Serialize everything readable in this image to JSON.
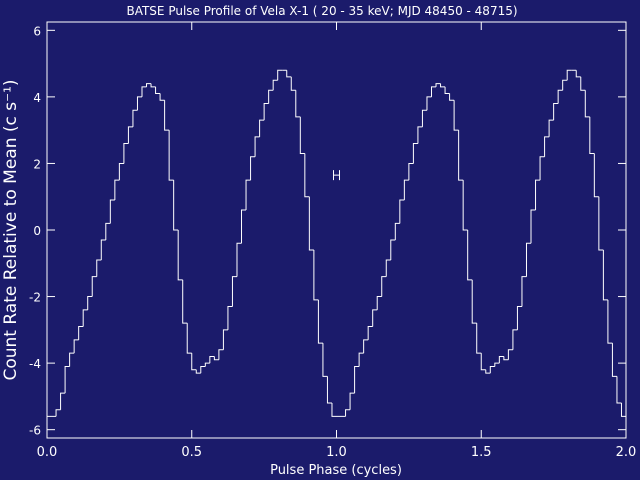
{
  "chart_data": {
    "type": "step-histogram",
    "title": "BATSE Pulse Profile of Vela X-1 ( 20 - 35 keV; MJD 48450 - 48715)",
    "x_label": "Pulse Phase (cycles)",
    "y_label": "Count Rate Relative to Mean (c s⁻¹)",
    "color": "#ffffff",
    "background": "#1b1b6b",
    "bins": [
      0,
      0.015625,
      0.03125,
      0.046875,
      0.0625,
      0.078125,
      0.09375,
      0.109375,
      0.125,
      0.140625,
      0.15625,
      0.171875,
      0.1875,
      0.203125,
      0.21875,
      0.234375,
      0.25,
      0.265625,
      0.28125,
      0.296875,
      0.3125,
      0.328125,
      0.34375,
      0.359375,
      0.375,
      0.390625,
      0.40625,
      0.421875,
      0.4375,
      0.453125,
      0.46875,
      0.484375,
      0.5,
      0.515625,
      0.53125,
      0.546875,
      0.5625,
      0.578125,
      0.59375,
      0.609375,
      0.625,
      0.640625,
      0.65625,
      0.671875,
      0.6875,
      0.703125,
      0.71875,
      0.734375,
      0.75,
      0.765625,
      0.78125,
      0.796875,
      0.8125,
      0.828125,
      0.84375,
      0.859375,
      0.875,
      0.890625,
      0.90625,
      0.921875,
      0.9375,
      0.953125,
      0.96875,
      0.984375,
      1,
      1.015625,
      1.03125,
      1.046875,
      1.0625,
      1.078125,
      1.09375,
      1.109375,
      1.125,
      1.140625,
      1.15625,
      1.171875,
      1.1875,
      1.203125,
      1.21875,
      1.234375,
      1.25,
      1.265625,
      1.28125,
      1.296875,
      1.3125,
      1.328125,
      1.34375,
      1.359375,
      1.375,
      1.390625,
      1.40625,
      1.421875,
      1.4375,
      1.453125,
      1.46875,
      1.484375,
      1.5,
      1.515625,
      1.53125,
      1.546875,
      1.5625,
      1.578125,
      1.59375,
      1.609375,
      1.625,
      1.640625,
      1.65625,
      1.671875,
      1.6875,
      1.703125,
      1.71875,
      1.734375,
      1.75,
      1.765625,
      1.78125,
      1.796875,
      1.8125,
      1.828125,
      1.84375,
      1.859375,
      1.875,
      1.890625,
      1.90625,
      1.921875,
      1.9375,
      1.953125,
      1.96875,
      1.984375,
      2
    ],
    "values": [
      -5.6,
      -5.6,
      -5.4,
      -4.9,
      -4.1,
      -3.7,
      -3.3,
      -2.9,
      -2.4,
      -2.0,
      -1.4,
      -0.9,
      -0.3,
      0.2,
      0.9,
      1.5,
      2.0,
      2.6,
      3.1,
      3.6,
      4.0,
      4.3,
      4.4,
      4.3,
      4.1,
      3.9,
      3.0,
      1.5,
      0.0,
      -1.5,
      -2.8,
      -3.7,
      -4.2,
      -4.3,
      -4.1,
      -4.0,
      -3.8,
      -3.9,
      -3.6,
      -3.0,
      -2.3,
      -1.4,
      -0.4,
      0.6,
      1.5,
      2.2,
      2.8,
      3.3,
      3.8,
      4.2,
      4.5,
      4.8,
      4.8,
      4.6,
      4.2,
      3.4,
      2.3,
      1.0,
      -0.6,
      -2.1,
      -3.4,
      -4.4,
      -5.2,
      -5.6,
      -5.6,
      -5.6,
      -5.4,
      -4.9,
      -4.1,
      -3.7,
      -3.3,
      -2.9,
      -2.4,
      -2.0,
      -1.4,
      -0.9,
      -0.3,
      0.2,
      0.9,
      1.5,
      2.0,
      2.6,
      3.1,
      3.6,
      4.0,
      4.3,
      4.4,
      4.3,
      4.1,
      3.9,
      3.0,
      1.5,
      0.0,
      -1.5,
      -2.8,
      -3.7,
      -4.2,
      -4.3,
      -4.1,
      -4.0,
      -3.8,
      -3.9,
      -3.6,
      -3.0,
      -2.3,
      -1.4,
      -0.4,
      0.6,
      1.5,
      2.2,
      2.8,
      3.3,
      3.8,
      4.2,
      4.5,
      4.8,
      4.8,
      4.6,
      4.2,
      3.4,
      2.3,
      1.0,
      -0.6,
      -2.1,
      -3.4,
      -4.4,
      -5.2,
      -5.6
    ],
    "error_bar": {
      "x": 1.0,
      "y": 1.65,
      "error": 0.15
    },
    "xlim": [
      0,
      2
    ],
    "ylim": [
      -6.25,
      6.25
    ],
    "xticks": [
      {
        "value": 0,
        "label": "0.0"
      },
      0.5,
      {
        "value": 1,
        "label": "1.0"
      },
      1.5,
      {
        "value": 2,
        "label": "2.0"
      }
    ],
    "yticks": [
      -6,
      -4,
      -2,
      0,
      2,
      4,
      6
    ],
    "grid": false
  }
}
